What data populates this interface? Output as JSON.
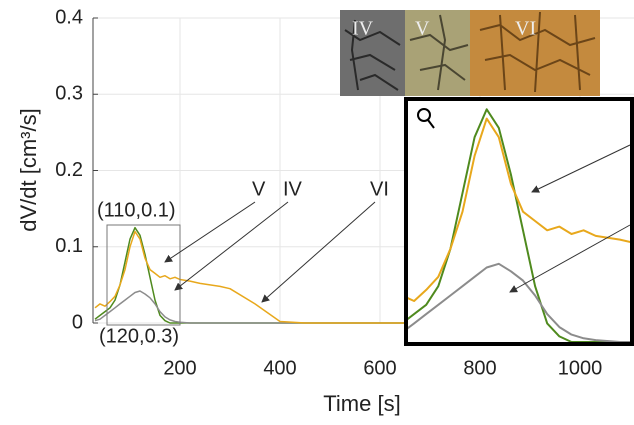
{
  "chart_data": {
    "type": "line",
    "x_label": "Time [s]",
    "y_label": "dV/dt [cm³/s]",
    "x": [
      30,
      40,
      50,
      60,
      70,
      80,
      90,
      100,
      110,
      120,
      130,
      140,
      150,
      160,
      170,
      180,
      190,
      200,
      220,
      240,
      260,
      280,
      300,
      350,
      400,
      450,
      700,
      1100
    ],
    "series": [
      {
        "name": "V",
        "color": "#4f8a1e",
        "values": [
          0.005,
          0.01,
          0.015,
          0.02,
          0.03,
          0.05,
          0.08,
          0.11,
          0.125,
          0.115,
          0.09,
          0.06,
          0.03,
          0.01,
          0.003,
          0,
          0,
          0,
          0,
          0,
          0,
          0,
          0,
          0,
          0,
          0,
          0,
          0
        ]
      },
      {
        "name": "IV",
        "color": "#8c8c8c",
        "values": [
          0.003,
          0.005,
          0.01,
          0.015,
          0.02,
          0.025,
          0.03,
          0.035,
          0.04,
          0.042,
          0.038,
          0.033,
          0.025,
          0.015,
          0.008,
          0.004,
          0.002,
          0.001,
          0,
          0,
          0,
          0,
          0,
          0,
          0,
          0,
          0,
          0
        ]
      },
      {
        "name": "VI",
        "color": "#e8a81c",
        "values": [
          0.02,
          0.025,
          0.022,
          0.028,
          0.035,
          0.05,
          0.07,
          0.1,
          0.12,
          0.11,
          0.085,
          0.07,
          0.065,
          0.06,
          0.062,
          0.058,
          0.06,
          0.057,
          0.055,
          0.052,
          0.05,
          0.048,
          0.045,
          0.025,
          0.002,
          0,
          0,
          0
        ]
      }
    ],
    "annotations": [
      "(110,0.1)",
      "(120,0.3)"
    ],
    "xlim": [
      26,
      1108
    ],
    "ylim": [
      0,
      0.4
    ],
    "xticks": [
      200,
      400,
      600,
      800,
      1000
    ],
    "yticks": [
      0,
      0.1,
      0.2,
      0.3,
      0.4
    ],
    "grid": true
  }
}
